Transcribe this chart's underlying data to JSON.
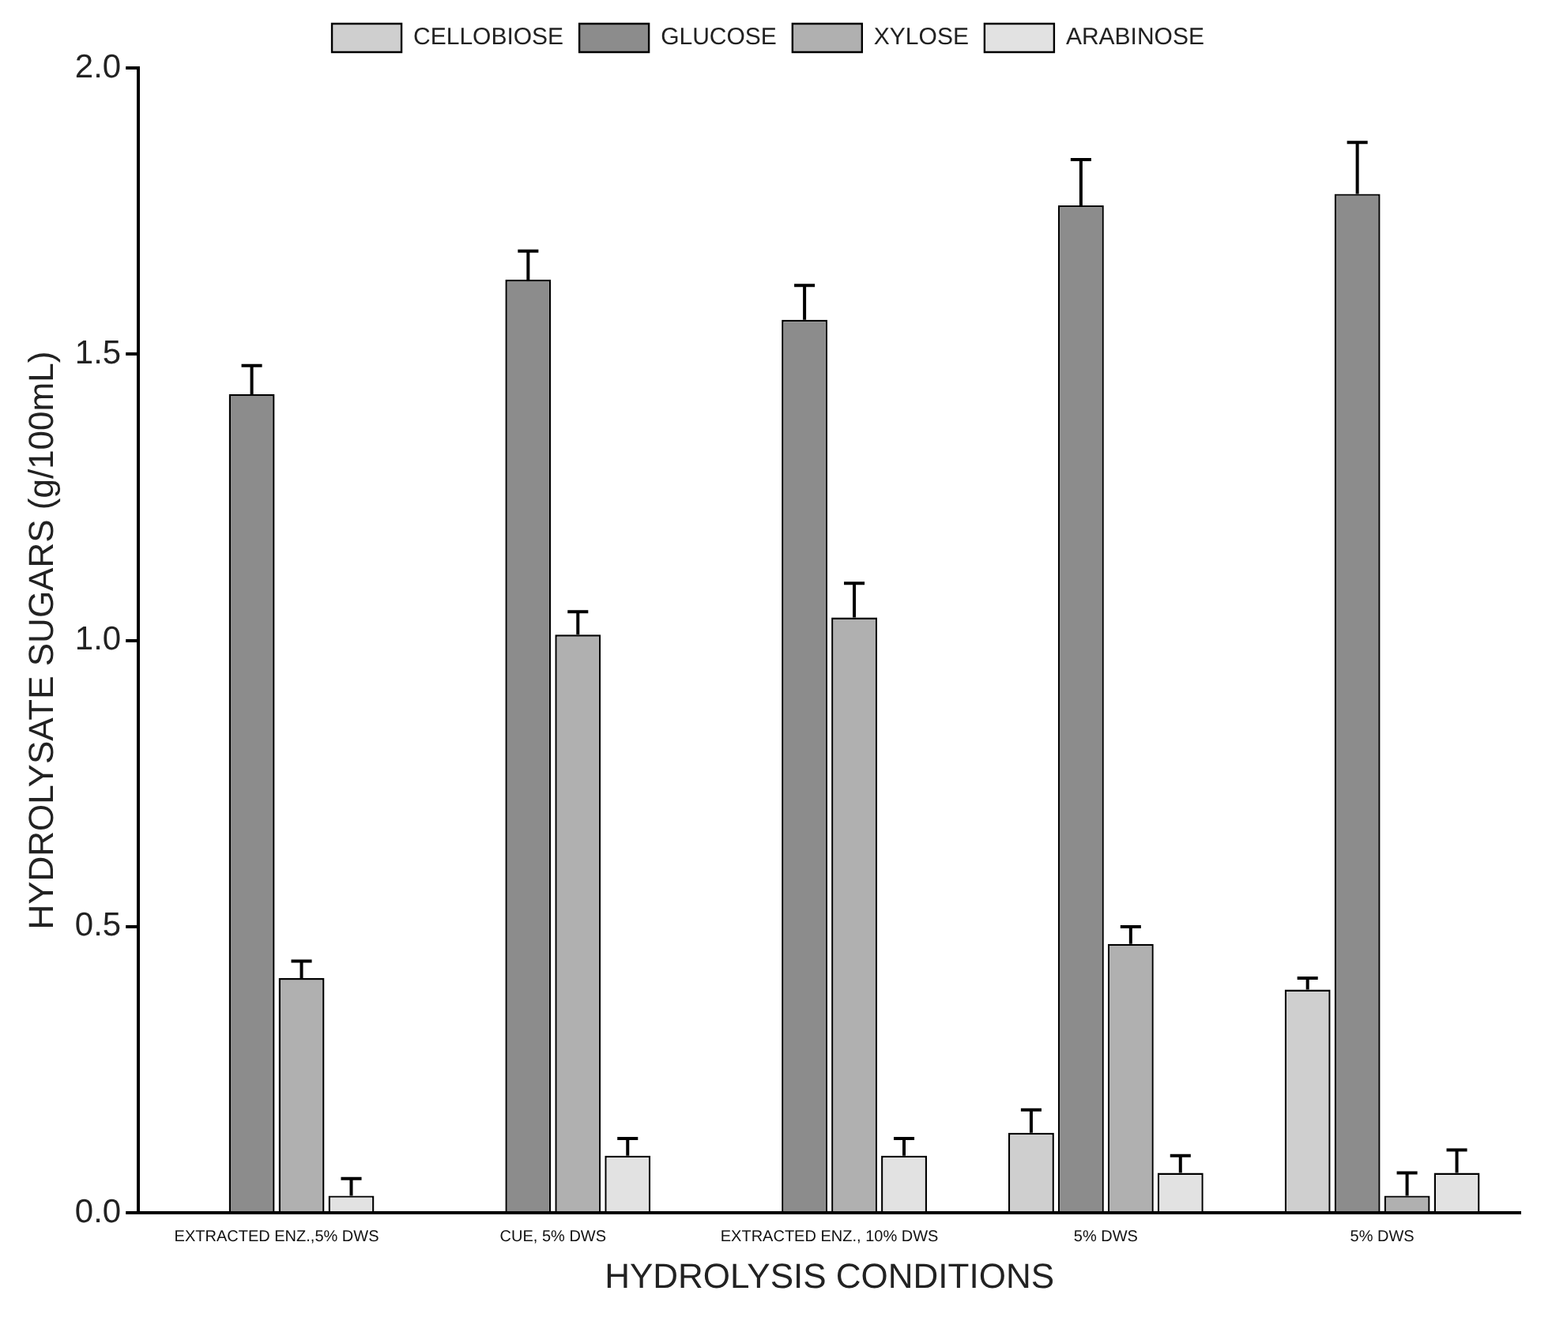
{
  "chart_data": {
    "type": "bar",
    "xlabel": "HYDROLYSIS CONDITIONS",
    "ylabel": "HYDROLYSATE SUGARS (g/100mL)",
    "categories": [
      "EXTRACTED ENZ.,5% DWS",
      "CUE, 5% DWS",
      "EXTRACTED ENZ., 10% DWS",
      "5% DWS",
      "5% DWS"
    ],
    "series": [
      {
        "name": "CELLOBIOSE",
        "color": "#cfcfcf",
        "values": [
          null,
          null,
          null,
          0.14,
          0.39
        ],
        "errors": [
          null,
          null,
          null,
          [
            0.14,
            0.18
          ],
          [
            0.39,
            0.41
          ]
        ]
      },
      {
        "name": "GLUCOSE",
        "color": "#8c8c8c",
        "values": [
          1.43,
          1.63,
          1.56,
          1.76,
          1.78
        ],
        "errors": [
          [
            1.43,
            1.48
          ],
          [
            1.63,
            1.68
          ],
          [
            1.56,
            1.62
          ],
          [
            1.76,
            1.84
          ],
          [
            1.78,
            1.87
          ]
        ]
      },
      {
        "name": "XYLOSE",
        "color": "#b0b0b0",
        "values": [
          0.41,
          1.01,
          1.04,
          0.47,
          0.03
        ],
        "errors": [
          [
            0.41,
            0.44
          ],
          [
            1.01,
            1.05
          ],
          [
            1.04,
            1.1
          ],
          [
            0.47,
            0.5
          ],
          [
            0.03,
            0.07
          ]
        ]
      },
      {
        "name": "ARABINOSE",
        "color": "#e2e2e2",
        "values": [
          0.03,
          0.1,
          0.1,
          0.07,
          0.07
        ],
        "errors": [
          [
            0.03,
            0.06
          ],
          [
            0.1,
            0.13
          ],
          [
            0.1,
            0.13
          ],
          [
            0.07,
            0.1
          ],
          [
            0.07,
            0.11
          ]
        ]
      }
    ],
    "ylim": [
      0,
      2
    ],
    "yticks": [
      {
        "value": 0,
        "label": "0.0"
      },
      0.5,
      {
        "value": 1,
        "label": "1.0"
      },
      1.5,
      {
        "value": 2,
        "label": "2.0"
      }
    ],
    "grid": false,
    "legend": "top"
  }
}
